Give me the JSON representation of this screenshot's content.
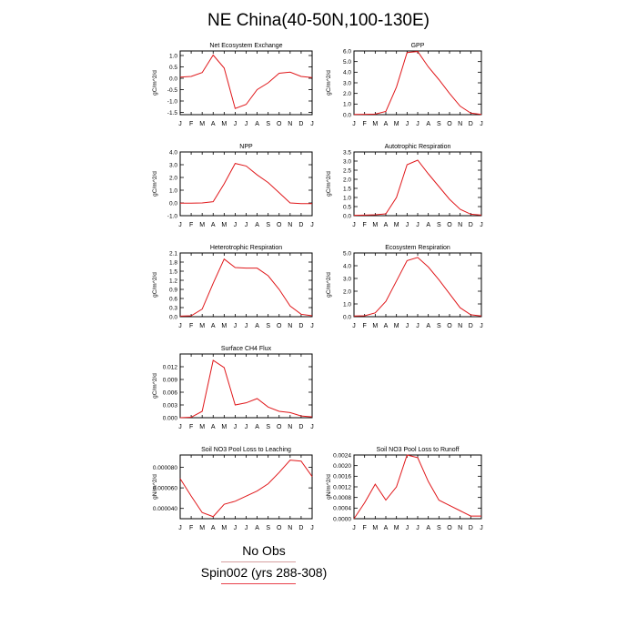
{
  "page": {
    "title": "NE China(40-50N,100-130E)"
  },
  "legend": [
    {
      "label": "No Obs",
      "color": "#d6a0a0"
    },
    {
      "label": "Spin002 (yrs 288-308)",
      "color": "#e8404a"
    }
  ],
  "series_color": "#e0181b",
  "chart_data": [
    {
      "type": "line",
      "title": "Net Ecosystem Exchange",
      "ylabel": "gC/m^2/d",
      "x": [
        "J",
        "F",
        "M",
        "A",
        "M",
        "J",
        "J",
        "A",
        "S",
        "O",
        "N",
        "D",
        "J"
      ],
      "ylim": [
        -1.6,
        1.2
      ],
      "yticks": [
        -1.5,
        -1.0,
        -0.5,
        0.0,
        0.5,
        1.0
      ],
      "ytick_labels": [
        "-1.5",
        "-1.0",
        "-0.5",
        "0.0",
        "0.5",
        "1.0"
      ],
      "values": [
        0.05,
        0.08,
        0.25,
        1.02,
        0.45,
        -1.33,
        -1.15,
        -0.5,
        -0.2,
        0.22,
        0.27,
        0.08,
        0.03
      ]
    },
    {
      "type": "line",
      "title": "GPP",
      "ylabel": "gC/m^2/d",
      "x": [
        "J",
        "F",
        "M",
        "A",
        "M",
        "J",
        "J",
        "A",
        "S",
        "O",
        "N",
        "D",
        "J"
      ],
      "ylim": [
        0,
        6.0
      ],
      "yticks": [
        0.0,
        1.0,
        2.0,
        3.0,
        4.0,
        5.0,
        6.0
      ],
      "ytick_labels": [
        "0.0",
        "1.0",
        "2.0",
        "3.0",
        "4.0",
        "5.0",
        "6.0"
      ],
      "values": [
        0.02,
        0.03,
        0.05,
        0.3,
        2.6,
        5.85,
        5.95,
        4.5,
        3.3,
        2.0,
        0.8,
        0.15,
        0.02
      ]
    },
    {
      "type": "line",
      "title": "NPP",
      "ylabel": "gC/m^2/d",
      "x": [
        "J",
        "F",
        "M",
        "A",
        "M",
        "J",
        "J",
        "A",
        "S",
        "O",
        "N",
        "D",
        "J"
      ],
      "ylim": [
        -1.0,
        4.0
      ],
      "yticks": [
        -1.0,
        0.0,
        1.0,
        2.0,
        3.0,
        4.0
      ],
      "ytick_labels": [
        "-1.0",
        "0.0",
        "1.0",
        "2.0",
        "3.0",
        "4.0"
      ],
      "values": [
        -0.02,
        -0.02,
        0.0,
        0.1,
        1.5,
        3.1,
        2.9,
        2.2,
        1.6,
        0.8,
        0.0,
        -0.05,
        -0.05
      ]
    },
    {
      "type": "line",
      "title": "Autotrophic Respiration",
      "ylabel": "gC/m^2/d",
      "x": [
        "J",
        "F",
        "M",
        "A",
        "M",
        "J",
        "J",
        "A",
        "S",
        "O",
        "N",
        "D",
        "J"
      ],
      "ylim": [
        0,
        3.5
      ],
      "yticks": [
        0.0,
        0.5,
        1.0,
        1.5,
        2.0,
        2.5,
        3.0,
        3.5
      ],
      "ytick_labels": [
        "0.0",
        "0.5",
        "1.0",
        "1.5",
        "2.0",
        "2.5",
        "3.0",
        "3.5"
      ],
      "values": [
        0.02,
        0.03,
        0.05,
        0.1,
        1.0,
        2.8,
        3.05,
        2.3,
        1.6,
        0.9,
        0.35,
        0.08,
        0.03
      ]
    },
    {
      "type": "line",
      "title": "Heterotrophic Respiration",
      "ylabel": "gC/m^2/d",
      "x": [
        "J",
        "F",
        "M",
        "A",
        "M",
        "J",
        "J",
        "A",
        "S",
        "O",
        "N",
        "D",
        "J"
      ],
      "ylim": [
        0,
        2.1
      ],
      "yticks": [
        0.0,
        0.3,
        0.6,
        0.9,
        1.2,
        1.5,
        1.8,
        2.1
      ],
      "ytick_labels": [
        "0.0",
        "0.3",
        "0.6",
        "0.9",
        "1.2",
        "1.5",
        "1.8",
        "2.1"
      ],
      "values": [
        0.02,
        0.03,
        0.25,
        1.1,
        1.9,
        1.62,
        1.6,
        1.6,
        1.35,
        0.9,
        0.35,
        0.08,
        0.03
      ]
    },
    {
      "type": "line",
      "title": "Ecosystem Respiration",
      "ylabel": "gC/m^2/d",
      "x": [
        "J",
        "F",
        "M",
        "A",
        "M",
        "J",
        "J",
        "A",
        "S",
        "O",
        "N",
        "D",
        "J"
      ],
      "ylim": [
        0,
        5.0
      ],
      "yticks": [
        0.0,
        1.0,
        2.0,
        3.0,
        4.0,
        5.0
      ],
      "ytick_labels": [
        "0.0",
        "1.0",
        "2.0",
        "3.0",
        "4.0",
        "5.0"
      ],
      "values": [
        0.05,
        0.07,
        0.3,
        1.2,
        2.8,
        4.4,
        4.65,
        3.9,
        2.9,
        1.8,
        0.7,
        0.15,
        0.05
      ]
    },
    {
      "type": "line",
      "title": "Surface CH4 Flux",
      "ylabel": "gC/m^2/d",
      "x": [
        "J",
        "F",
        "M",
        "A",
        "M",
        "J",
        "J",
        "A",
        "S",
        "O",
        "N",
        "D",
        "J"
      ],
      "ylim": [
        0,
        0.015
      ],
      "yticks": [
        0.0,
        0.003,
        0.006,
        0.009,
        0.012
      ],
      "ytick_labels": [
        "0.000",
        "0.003",
        "0.006",
        "0.009",
        "0.012"
      ],
      "values": [
        0.0,
        0.0001,
        0.0015,
        0.0135,
        0.0118,
        0.003,
        0.0035,
        0.0045,
        0.0025,
        0.0015,
        0.0012,
        0.0004,
        0.0002
      ]
    },
    {
      "type": "line",
      "title": "Soil NO3 Pool Loss to Leaching",
      "ylabel": "gN/m^2/d",
      "x": [
        "J",
        "F",
        "M",
        "A",
        "M",
        "J",
        "J",
        "A",
        "S",
        "O",
        "N",
        "D",
        "J"
      ],
      "ylim": [
        3e-05,
        9.2e-05
      ],
      "yticks": [
        4e-05,
        6e-05,
        8e-05
      ],
      "ytick_labels": [
        "0.000040",
        "0.000060",
        "0.000080"
      ],
      "values": [
        6.9e-05,
        5.2e-05,
        3.6e-05,
        3.2e-05,
        4.4e-05,
        4.7e-05,
        5.2e-05,
        5.7e-05,
        6.4e-05,
        7.5e-05,
        8.7e-05,
        8.6e-05,
        7.1e-05
      ]
    },
    {
      "type": "line",
      "title": "Soil NO3 Pool Loss to Runoff",
      "ylabel": "gN/m^2/d",
      "x": [
        "J",
        "F",
        "M",
        "A",
        "M",
        "J",
        "J",
        "A",
        "S",
        "O",
        "N",
        "D",
        "J"
      ],
      "ylim": [
        0,
        0.0024
      ],
      "yticks": [
        0.0,
        0.0004,
        0.0008,
        0.0012,
        0.0016,
        0.002,
        0.0024
      ],
      "ytick_labels": [
        "0.0000",
        "0.0004",
        "0.0008",
        "0.0012",
        "0.0016",
        "0.0020",
        "0.0024"
      ],
      "values": [
        0.0,
        0.0006,
        0.0013,
        0.0007,
        0.0012,
        0.0024,
        0.0023,
        0.0014,
        0.0007,
        0.0005,
        0.0003,
        0.0001,
        0.0001
      ]
    }
  ]
}
